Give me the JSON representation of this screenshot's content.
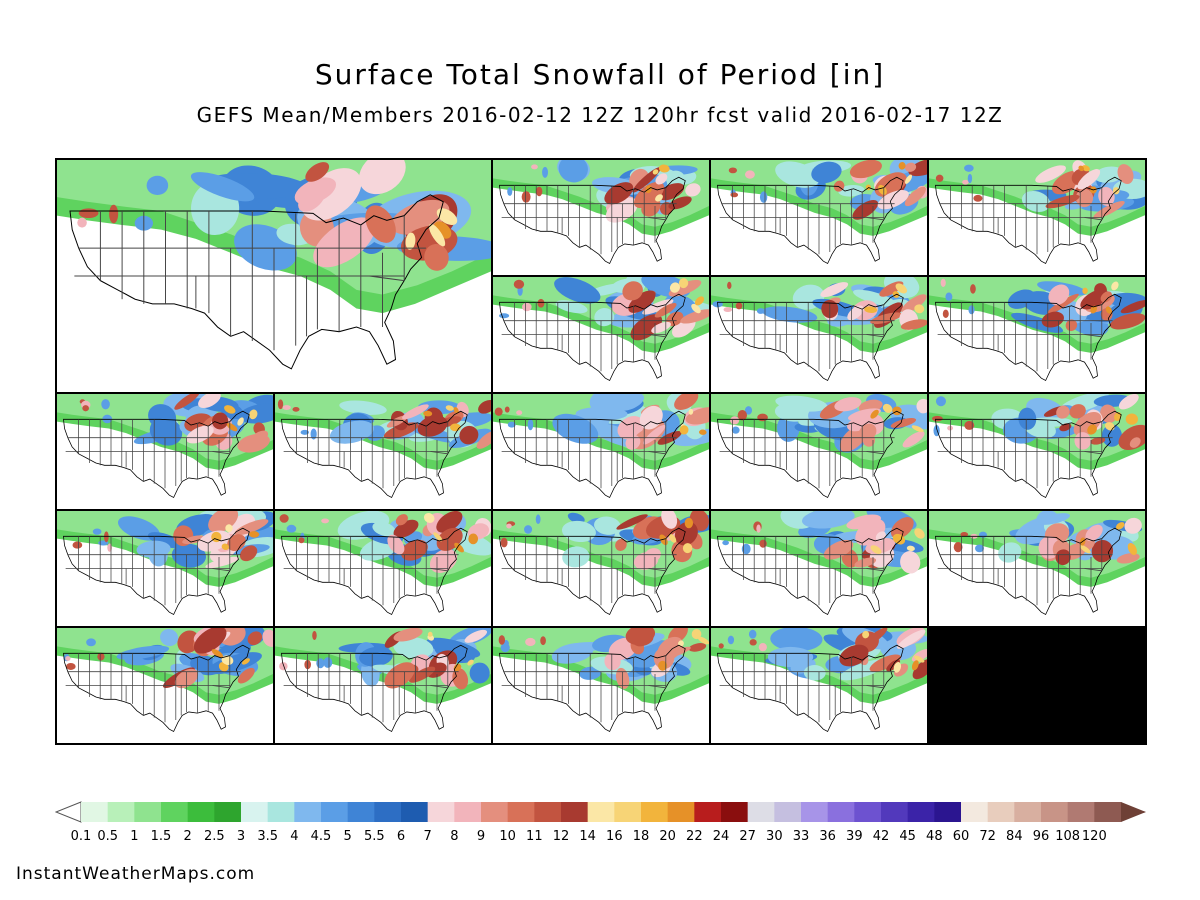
{
  "title": "Surface Total Snowfall of Period [in]",
  "subtitle": "GEFS Mean/Members 2016-02-12 12Z 120hr fcst valid 2016-02-17 12Z",
  "footer": "InstantWeatherMaps.com",
  "map": {
    "panel_count": 21,
    "panels": [
      {
        "role": "mean",
        "seed": 3
      },
      {
        "role": "member",
        "seed": 11
      },
      {
        "role": "member",
        "seed": 17
      },
      {
        "role": "member",
        "seed": 23
      },
      {
        "role": "member",
        "seed": 29
      },
      {
        "role": "member",
        "seed": 31
      },
      {
        "role": "member",
        "seed": 37
      },
      {
        "role": "member",
        "seed": 41
      },
      {
        "role": "member",
        "seed": 43
      },
      {
        "role": "member",
        "seed": 47
      },
      {
        "role": "member",
        "seed": 53
      },
      {
        "role": "member",
        "seed": 59
      },
      {
        "role": "member",
        "seed": 61
      },
      {
        "role": "member",
        "seed": 67
      },
      {
        "role": "member",
        "seed": 71
      },
      {
        "role": "member",
        "seed": 73
      },
      {
        "role": "member",
        "seed": 79
      },
      {
        "role": "member",
        "seed": 83
      },
      {
        "role": "member",
        "seed": 89
      },
      {
        "role": "member",
        "seed": 97
      },
      {
        "role": "member",
        "seed": 101
      }
    ]
  },
  "legend": {
    "units": "in",
    "labels": [
      "0.1",
      "0.5",
      "1",
      "1.5",
      "2",
      "2.5",
      "3",
      "3.5",
      "4",
      "4.5",
      "5",
      "5.5",
      "6",
      "7",
      "8",
      "9",
      "10",
      "11",
      "12",
      "14",
      "16",
      "18",
      "20",
      "22",
      "24",
      "27",
      "30",
      "33",
      "36",
      "39",
      "42",
      "45",
      "48",
      "60",
      "72",
      "84",
      "96",
      "108",
      "120"
    ],
    "colors": [
      "#e1f7e4",
      "#b8f0b9",
      "#8fe38f",
      "#5fd35f",
      "#3cbd3c",
      "#2ea52e",
      "#d8f3ef",
      "#a9e6df",
      "#7fb8ee",
      "#5b9ee6",
      "#3f84d6",
      "#2d6ec4",
      "#1e5cb0",
      "#f6d6da",
      "#f2b4bb",
      "#e48f7e",
      "#d87158",
      "#c25440",
      "#a83a30",
      "#fbe7a6",
      "#f7d476",
      "#f2b43c",
      "#e69128",
      "#b81d1d",
      "#8a0e0e",
      "#dddde6",
      "#c5bfe0",
      "#a794e8",
      "#8a70de",
      "#6d52d0",
      "#5239bc",
      "#3b23a8",
      "#2b1590",
      "#f3e9df",
      "#e8cdbd",
      "#d8afa0",
      "#c89487",
      "#b07a72",
      "#8e5a52"
    ]
  }
}
